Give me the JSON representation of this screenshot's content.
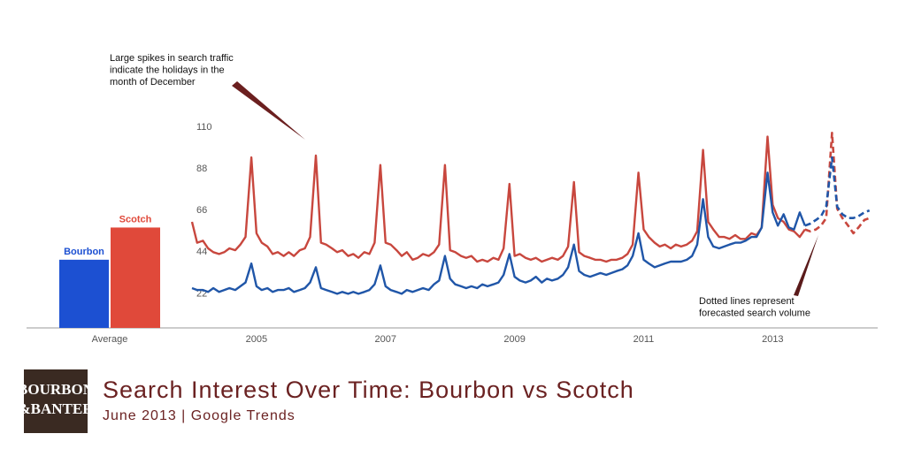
{
  "chart_data": [
    {
      "type": "bar",
      "categories": [
        "Bourbon",
        "Scotch"
      ],
      "values": [
        40,
        57
      ],
      "colors": [
        "#1c50d2",
        "#e0493a"
      ],
      "xlabel": "Average",
      "ylim": [
        4,
        116
      ]
    },
    {
      "type": "line",
      "x": [
        2004,
        2004.08,
        2004.17,
        2004.25,
        2004.33,
        2004.42,
        2004.5,
        2004.58,
        2004.67,
        2004.75,
        2004.83,
        2004.92,
        2005,
        2005.08,
        2005.17,
        2005.25,
        2005.33,
        2005.42,
        2005.5,
        2005.58,
        2005.67,
        2005.75,
        2005.83,
        2005.92,
        2006,
        2006.08,
        2006.17,
        2006.25,
        2006.33,
        2006.42,
        2006.5,
        2006.58,
        2006.67,
        2006.75,
        2006.83,
        2006.92,
        2007,
        2007.08,
        2007.17,
        2007.25,
        2007.33,
        2007.42,
        2007.5,
        2007.58,
        2007.67,
        2007.75,
        2007.83,
        2007.92,
        2008,
        2008.08,
        2008.17,
        2008.25,
        2008.33,
        2008.42,
        2008.5,
        2008.58,
        2008.67,
        2008.75,
        2008.83,
        2008.92,
        2009,
        2009.08,
        2009.17,
        2009.25,
        2009.33,
        2009.42,
        2009.5,
        2009.58,
        2009.67,
        2009.75,
        2009.83,
        2009.92,
        2010,
        2010.08,
        2010.17,
        2010.25,
        2010.33,
        2010.42,
        2010.5,
        2010.58,
        2010.67,
        2010.75,
        2010.83,
        2010.92,
        2011,
        2011.08,
        2011.17,
        2011.25,
        2011.33,
        2011.42,
        2011.5,
        2011.58,
        2011.67,
        2011.75,
        2011.83,
        2011.92,
        2012,
        2012.08,
        2012.17,
        2012.25,
        2012.33,
        2012.42,
        2012.5,
        2012.58,
        2012.67,
        2012.75,
        2012.83,
        2012.92,
        2013,
        2013.08,
        2013.17,
        2013.25,
        2013.33,
        2013.42,
        2013.5,
        2013.58,
        2013.67,
        2013.75,
        2013.83,
        2013.92,
        2014,
        2014.08,
        2014.17,
        2014.25,
        2014.33,
        2014.42,
        2014.5
      ],
      "series": [
        {
          "name": "Scotch",
          "color": "#c8473e",
          "values": [
            60,
            49,
            50,
            46,
            44,
            43,
            44,
            46,
            45,
            48,
            52,
            94,
            54,
            49,
            47,
            43,
            44,
            42,
            44,
            42,
            45,
            46,
            52,
            95,
            49,
            48,
            46,
            44,
            45,
            42,
            43,
            41,
            44,
            43,
            49,
            90,
            49,
            48,
            45,
            42,
            44,
            40,
            41,
            43,
            42,
            44,
            48,
            90,
            45,
            44,
            42,
            41,
            42,
            39,
            40,
            39,
            41,
            40,
            46,
            80,
            42,
            43,
            41,
            40,
            41,
            39,
            40,
            41,
            40,
            42,
            47,
            81,
            44,
            42,
            41,
            40,
            40,
            39,
            40,
            40,
            41,
            43,
            48,
            86,
            56,
            52,
            49,
            47,
            48,
            46,
            48,
            47,
            48,
            50,
            55,
            98,
            60,
            56,
            52,
            52,
            51,
            53,
            51,
            51,
            54,
            53,
            57,
            105,
            69,
            62,
            60,
            56,
            55,
            52,
            56,
            55,
            56,
            58,
            62,
            107,
            67,
            62,
            58,
            54,
            57,
            61,
            62
          ]
        },
        {
          "name": "Bourbon",
          "color": "#2056a8",
          "values": [
            25,
            24,
            24,
            23,
            25,
            23,
            24,
            25,
            24,
            26,
            28,
            38,
            26,
            24,
            25,
            23,
            24,
            24,
            25,
            23,
            24,
            25,
            28,
            36,
            25,
            24,
            23,
            22,
            23,
            22,
            23,
            22,
            23,
            24,
            27,
            37,
            26,
            24,
            23,
            22,
            24,
            23,
            24,
            25,
            24,
            27,
            29,
            42,
            30,
            27,
            26,
            25,
            26,
            25,
            27,
            26,
            27,
            28,
            32,
            43,
            31,
            29,
            28,
            29,
            31,
            28,
            30,
            29,
            30,
            32,
            36,
            48,
            34,
            32,
            31,
            32,
            33,
            32,
            33,
            34,
            35,
            37,
            42,
            54,
            40,
            38,
            36,
            37,
            38,
            39,
            39,
            39,
            40,
            42,
            48,
            72,
            52,
            47,
            46,
            47,
            48,
            49,
            49,
            50,
            52,
            52,
            57,
            86,
            65,
            58,
            64,
            57,
            56,
            65,
            58,
            59,
            61,
            63,
            68,
            94,
            68,
            64,
            62,
            62,
            63,
            65,
            66
          ]
        }
      ],
      "forecast_from": 2013.5,
      "xlim": [
        2004,
        2014.6
      ],
      "xticks": [
        2005,
        2007,
        2009,
        2011,
        2013
      ],
      "ylim": [
        4,
        116
      ],
      "yticks": [
        22,
        44,
        66,
        88,
        110
      ],
      "annotations": [
        {
          "lines": [
            "Large spikes in search traffic",
            "indicate the holidays in the",
            "month of December"
          ]
        },
        {
          "lines": [
            "Dotted lines represent",
            "forecasted search volume"
          ]
        }
      ]
    }
  ],
  "footer": {
    "logo": [
      "BOURBON",
      "&BANTER"
    ],
    "title": "Search Interest Over Time: Bourbon vs Scotch",
    "subtitle": "June 2013 | Google Trends"
  }
}
